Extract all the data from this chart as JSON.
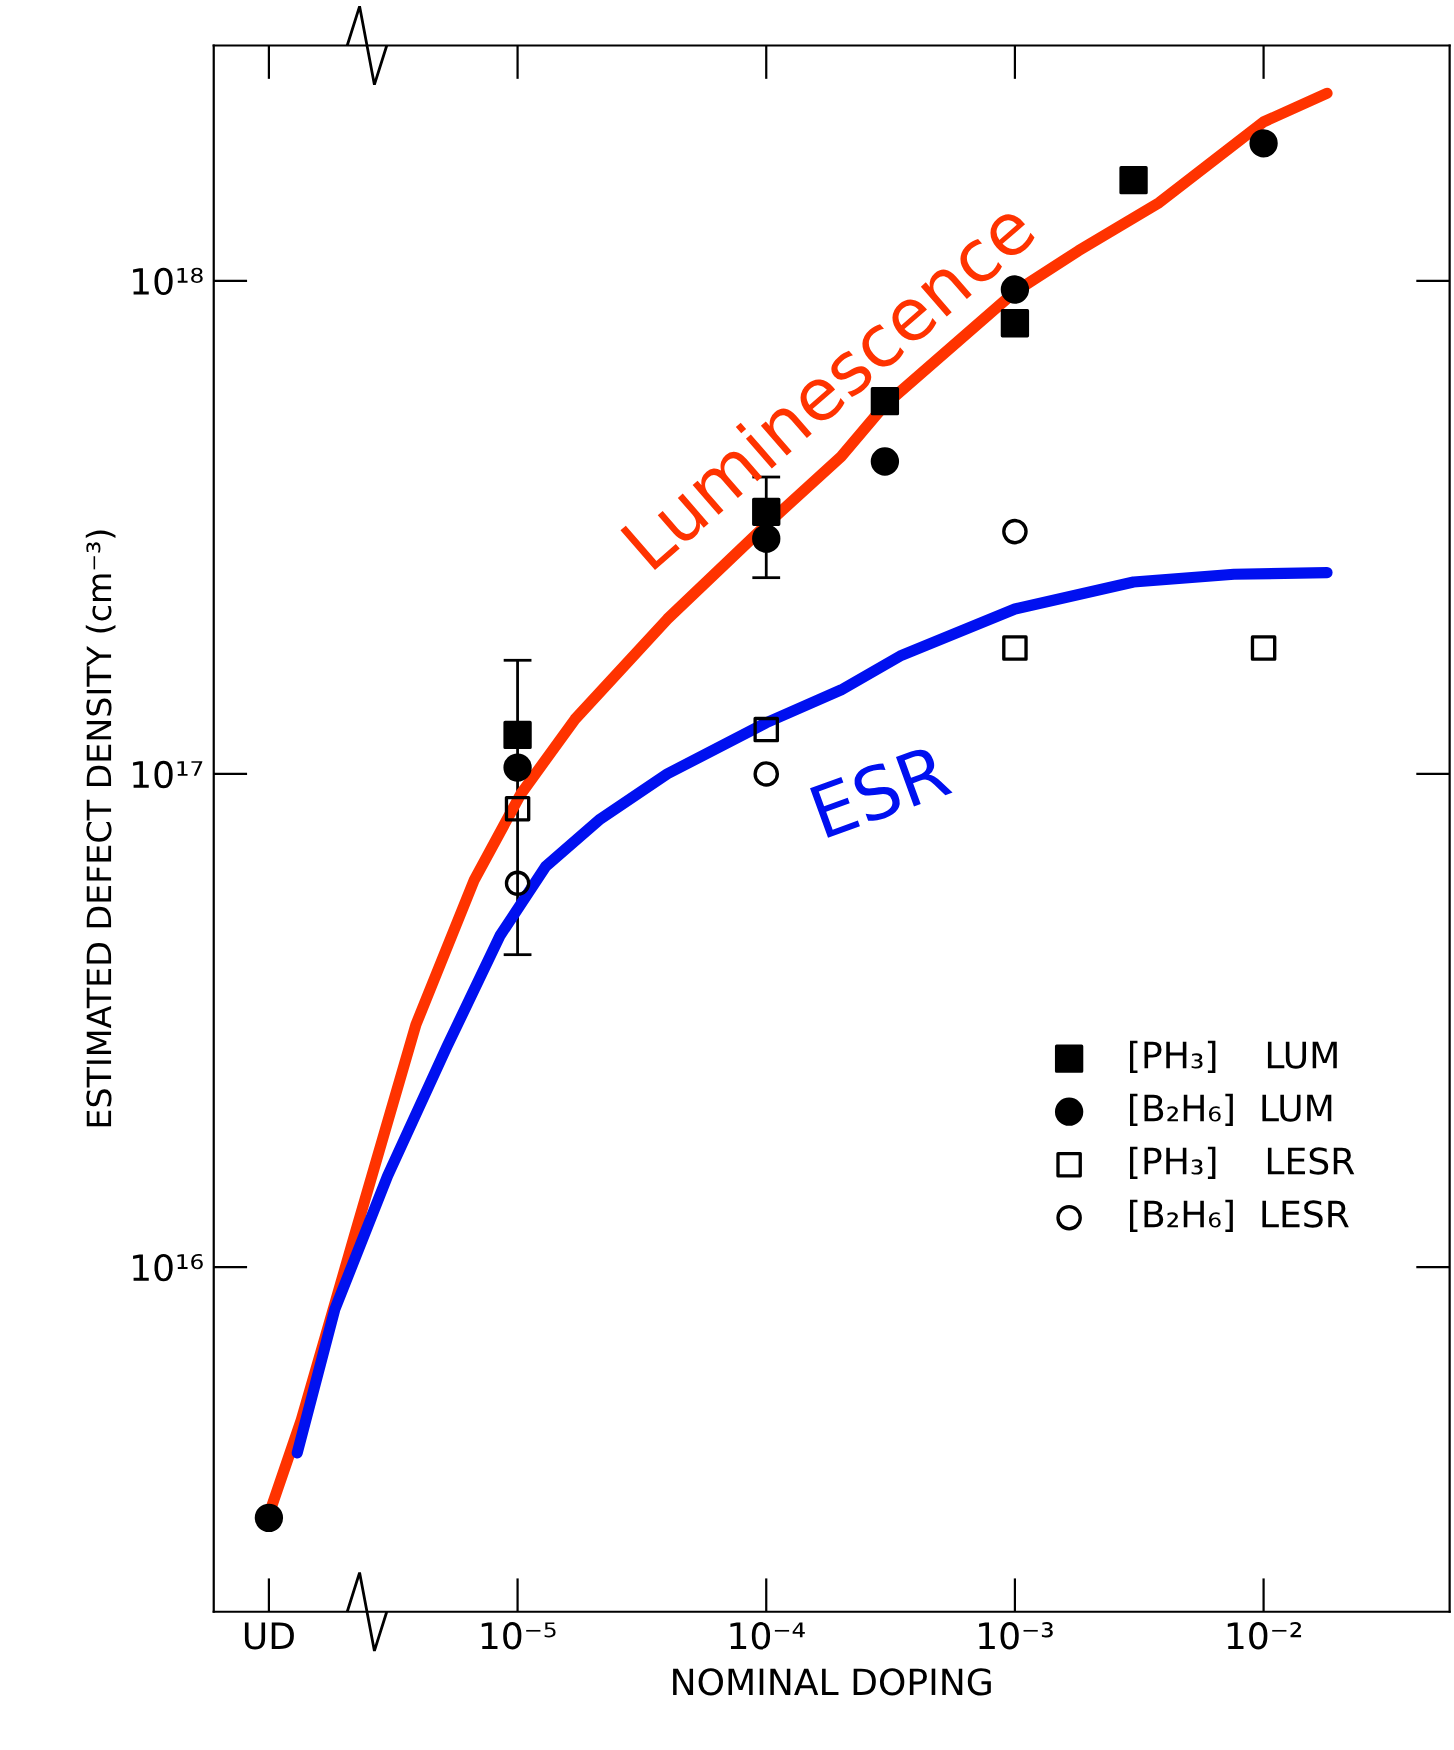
{
  "chart_data": {
    "type": "scatter",
    "xlabel": "NOMINAL DOPING",
    "ylabel": "ESTIMATED DEFECT DENSITY (cm⁻³)",
    "log": "xy",
    "xlim": [
      6e-07,
      0.056
    ],
    "ylim": [
      2000000000000000.0,
      3e+18
    ],
    "xticks": [
      {
        "value": 1e-06,
        "label": "UD"
      },
      {
        "value": 1e-05,
        "label": "10⁻⁵"
      },
      {
        "value": 0.0001,
        "label": "10⁻⁴"
      },
      {
        "value": 0.001,
        "label": "10⁻³"
      },
      {
        "value": 0.01,
        "label": "10⁻²"
      }
    ],
    "yticks": [
      {
        "value": 1e+16,
        "label": "10¹⁶"
      },
      {
        "value": 1e+17,
        "label": "10¹⁷"
      },
      {
        "value": 1e+18,
        "label": "10¹⁸"
      }
    ],
    "grid": false,
    "legend": "lower right",
    "series": [
      {
        "name": "Luminescence",
        "type": "line",
        "color": "#ff3300",
        "line_style": "solid",
        "x": [
          1e-06,
          1.35e-06,
          2.2e-06,
          3.9e-06,
          6.7e-06,
          1.03e-05,
          1.7e-05,
          4e-05,
          0.0001,
          0.0002,
          0.0003,
          0.001,
          0.0018,
          0.0038,
          0.01,
          0.018
        ],
        "values": [
          3150000000000000.0,
          4900000000000000.0,
          1.15e+16,
          3.1e+16,
          6.1e+16,
          9.1e+16,
          1.29e+17,
          2.06e+17,
          3.2e+17,
          4.4e+17,
          5.6e+17,
          9.5e+17,
          1.15e+18,
          1.44e+18,
          2.1e+18,
          2.4e+18
        ]
      },
      {
        "name": "ESR",
        "type": "line",
        "color": "#0010f0",
        "line_style": "solid",
        "x": [
          1.3e-06,
          1.84e-06,
          3e-06,
          5.2e-06,
          8.5e-06,
          1.3e-05,
          2.15e-05,
          4e-05,
          0.0001,
          0.0002,
          0.00035,
          0.001,
          0.003,
          0.0076,
          0.018
        ],
        "values": [
          4200000000000000.0,
          8200000000000000.0,
          1.53e+16,
          2.8e+16,
          4.7e+16,
          6.5e+16,
          8.1e+16,
          1e+17,
          1.27e+17,
          1.48e+17,
          1.74e+17,
          2.16e+17,
          2.45e+17,
          2.54e+17,
          2.56e+17
        ]
      },
      {
        "name": "[PH₃]    LUM",
        "marker": "square",
        "color": "#000000",
        "x": [
          1e-05,
          0.0001,
          0.0003,
          0.001,
          0.003
        ],
        "values": [
          1.2e+17,
          3.4e+17,
          5.7e+17,
          8.2e+17,
          1.6e+18
        ],
        "errors": [
          [
            4.3e+16,
            1.7e+17
          ],
          [
            2.5e+17,
            4e+17
          ],
          null,
          null,
          null
        ]
      },
      {
        "name": "[B₂H₆]  LUM",
        "marker": "circle",
        "color": "#000000",
        "x": [
          1e-06,
          1e-05,
          0.0001,
          0.0003,
          0.001,
          0.01
        ],
        "values": [
          3100000000000000.0,
          1.03e+17,
          3e+17,
          4.3e+17,
          9.6e+17,
          1.9e+18
        ]
      },
      {
        "name": "[PH₃]    LESR",
        "marker": "square",
        "color": "#000000",
        "x": [
          1e-05,
          0.0001,
          0.001,
          0.01
        ],
        "values": [
          8.5e+16,
          1.23e+17,
          1.8e+17,
          1.8e+17
        ]
      },
      {
        "name": "[B₂H₆]  LESR",
        "marker": "circle",
        "color": "#000000",
        "x": [
          1e-05,
          0.0001,
          0.001
        ],
        "values": [
          6e+16,
          1e+17,
          3.1e+17
        ]
      }
    ]
  }
}
